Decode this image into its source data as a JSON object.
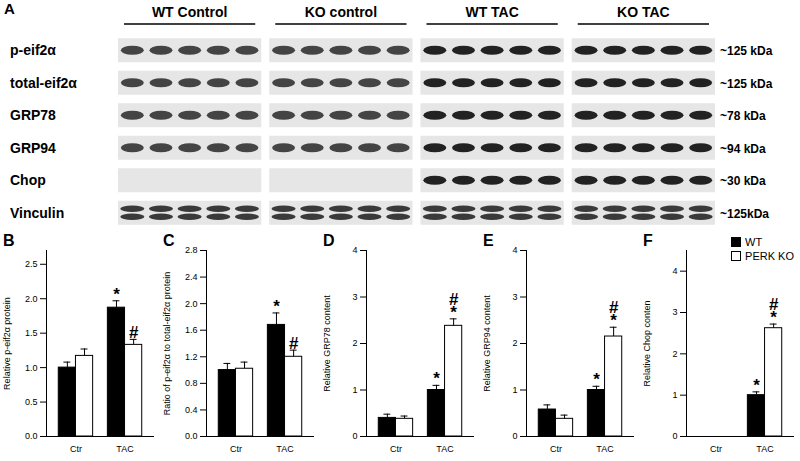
{
  "blot": {
    "panel": "A",
    "groups": [
      "WT Control",
      "KO control",
      "WT TAC",
      "KO TAC"
    ],
    "lanes_per_group": 5,
    "rows": [
      {
        "label": "p-eif2α",
        "size": "~125 kDa"
      },
      {
        "label": "total-eif2α",
        "size": "~125 kDa"
      },
      {
        "label": "GRP78",
        "size": "~78 kDa"
      },
      {
        "label": "GRP94",
        "size": "~94 kDa"
      },
      {
        "label": "Chop",
        "size": "~30 kDa",
        "bands_in": [
          "WT TAC",
          "KO TAC"
        ]
      },
      {
        "label": "Vinculin",
        "size": "~125kDa"
      }
    ]
  },
  "chart_data": [
    {
      "type": "bar",
      "title": "B",
      "y_label": "Relative p-eif2α protein",
      "categories": [
        "Ctr",
        "TAC"
      ],
      "series": [
        {
          "name": "WT",
          "color": "#000000",
          "values": [
            1.0,
            1.87
          ],
          "errors": [
            0.08,
            0.1
          ]
        },
        {
          "name": "PERK KO",
          "color": "#ffffff",
          "values": [
            1.17,
            1.33
          ],
          "errors": [
            0.1,
            0.08
          ]
        }
      ],
      "ylim": [
        0,
        2.7
      ],
      "yticks": [
        {
          "value": 0,
          "label": "0.0"
        },
        {
          "value": 0.5,
          "label": "0.5"
        },
        {
          "value": 1,
          "label": "1.0"
        },
        {
          "value": 1.5,
          "label": "1.5"
        },
        {
          "value": 2,
          "label": "2.0"
        },
        {
          "value": 2.5,
          "label": "2.5"
        }
      ],
      "annotations": [
        {
          "category": "TAC",
          "series": "WT",
          "text": "*"
        },
        {
          "category": "TAC",
          "series": "PERK KO",
          "text": "#"
        }
      ]
    },
    {
      "type": "bar",
      "title": "C",
      "y_label": "Ratio of p-eif2α to total-eif2α protein",
      "categories": [
        "Ctr",
        "TAC"
      ],
      "series": [
        {
          "name": "WT",
          "color": "#000000",
          "values": [
            1.0,
            1.68
          ],
          "errors": [
            0.1,
            0.18
          ]
        },
        {
          "name": "PERK KO",
          "color": "#ffffff",
          "values": [
            1.02,
            1.2
          ],
          "errors": [
            0.1,
            0.1
          ]
        }
      ],
      "ylim": [
        0,
        2.8
      ],
      "yticks": [
        {
          "value": 0,
          "label": "0.0"
        },
        {
          "value": 0.4,
          "label": "0.4"
        },
        {
          "value": 0.8,
          "label": "0.8"
        },
        {
          "value": 1.2,
          "label": "1.2"
        },
        {
          "value": 1.6,
          "label": "1.6"
        },
        {
          "value": 2,
          "label": "2.0"
        },
        {
          "value": 2.4,
          "label": "2.4"
        },
        {
          "value": 2.8,
          "label": "2.8"
        }
      ],
      "annotations": [
        {
          "category": "TAC",
          "series": "WT",
          "text": "*"
        },
        {
          "category": "TAC",
          "series": "PERK KO",
          "text": "#"
        }
      ]
    },
    {
      "type": "bar",
      "title": "D",
      "y_label": "Relative GRP78 content",
      "categories": [
        "Ctr",
        "TAC"
      ],
      "series": [
        {
          "name": "WT",
          "color": "#000000",
          "values": [
            0.4,
            1.0
          ],
          "errors": [
            0.08,
            0.1
          ]
        },
        {
          "name": "PERK KO",
          "color": "#ffffff",
          "values": [
            0.38,
            2.38
          ],
          "errors": [
            0.06,
            0.15
          ]
        }
      ],
      "ylim": [
        0,
        4
      ],
      "yticks": [
        0,
        1,
        2,
        3,
        4
      ],
      "annotations": [
        {
          "category": "TAC",
          "series": "WT",
          "text": "*"
        },
        {
          "category": "TAC",
          "series": "PERK KO",
          "text": "*"
        },
        {
          "category": "TAC",
          "series": "PERK KO",
          "text": "#"
        }
      ]
    },
    {
      "type": "bar",
      "title": "E",
      "y_label": "Relative GRP94 content",
      "categories": [
        "Ctr",
        "TAC"
      ],
      "series": [
        {
          "name": "WT",
          "color": "#000000",
          "values": [
            0.58,
            1.0
          ],
          "errors": [
            0.1,
            0.08
          ]
        },
        {
          "name": "PERK KO",
          "color": "#ffffff",
          "values": [
            0.38,
            2.15
          ],
          "errors": [
            0.08,
            0.2
          ]
        }
      ],
      "ylim": [
        0,
        4
      ],
      "yticks": [
        0,
        1,
        2,
        3,
        4
      ],
      "annotations": [
        {
          "category": "TAC",
          "series": "WT",
          "text": "*"
        },
        {
          "category": "TAC",
          "series": "PERK KO",
          "text": "*"
        },
        {
          "category": "TAC",
          "series": "PERK KO",
          "text": "#"
        }
      ]
    },
    {
      "type": "bar",
      "title": "F",
      "y_label": "Relative Chop conten",
      "categories": [
        "Ctr",
        "TAC"
      ],
      "series": [
        {
          "name": "WT",
          "color": "#000000",
          "values": [
            0,
            1.0
          ],
          "errors": [
            0,
            0.08
          ]
        },
        {
          "name": "PERK KO",
          "color": "#ffffff",
          "values": [
            0,
            2.62
          ],
          "errors": [
            0,
            0.1
          ]
        }
      ],
      "ylim": [
        0,
        4.5
      ],
      "yticks": [
        0,
        1,
        2,
        3,
        4
      ],
      "legend": "top-right",
      "annotations": [
        {
          "category": "TAC",
          "series": "WT",
          "text": "*"
        },
        {
          "category": "TAC",
          "series": "PERK KO",
          "text": "*"
        },
        {
          "category": "TAC",
          "series": "PERK KO",
          "text": "#"
        }
      ]
    }
  ]
}
